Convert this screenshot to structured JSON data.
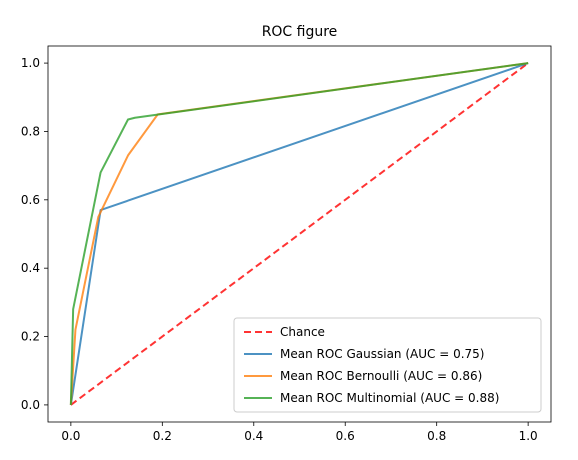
{
  "chart_data": {
    "type": "line",
    "title": "ROC figure",
    "xlabel": "",
    "ylabel": "",
    "xlim": [
      -0.05,
      1.05
    ],
    "ylim": [
      -0.05,
      1.05
    ],
    "xticks": [
      0.0,
      0.2,
      0.4,
      0.6,
      0.8,
      1.0
    ],
    "yticks": [
      0.0,
      0.2,
      0.4,
      0.6,
      0.8,
      1.0
    ],
    "tick_labels": [
      "0.0",
      "0.2",
      "0.4",
      "0.6",
      "0.8",
      "1.0"
    ],
    "grid": false,
    "legend_position": "lower-right",
    "series": [
      {
        "name": "Chance",
        "color": "#ff0000",
        "style": "dashed",
        "x": [
          0.0,
          1.0
        ],
        "y": [
          0.0,
          1.0
        ]
      },
      {
        "name": "Mean ROC Gaussian (AUC = 0.75)",
        "color": "#1f77b4",
        "style": "solid",
        "x": [
          0.0,
          0.065,
          1.0
        ],
        "y": [
          0.0,
          0.57,
          1.0
        ]
      },
      {
        "name": "Mean ROC Bernoulli (AUC = 0.86)",
        "color": "#ff7f0e",
        "style": "solid",
        "x": [
          0.0,
          0.01,
          0.06,
          0.125,
          0.19,
          1.0
        ],
        "y": [
          0.0,
          0.22,
          0.55,
          0.73,
          0.85,
          1.0
        ]
      },
      {
        "name": "Mean ROC Multinomial (AUC = 0.88)",
        "color": "#2ca02c",
        "style": "solid",
        "x": [
          0.0,
          0.005,
          0.065,
          0.125,
          0.14,
          1.0
        ],
        "y": [
          0.0,
          0.28,
          0.68,
          0.835,
          0.84,
          1.0
        ]
      }
    ]
  }
}
